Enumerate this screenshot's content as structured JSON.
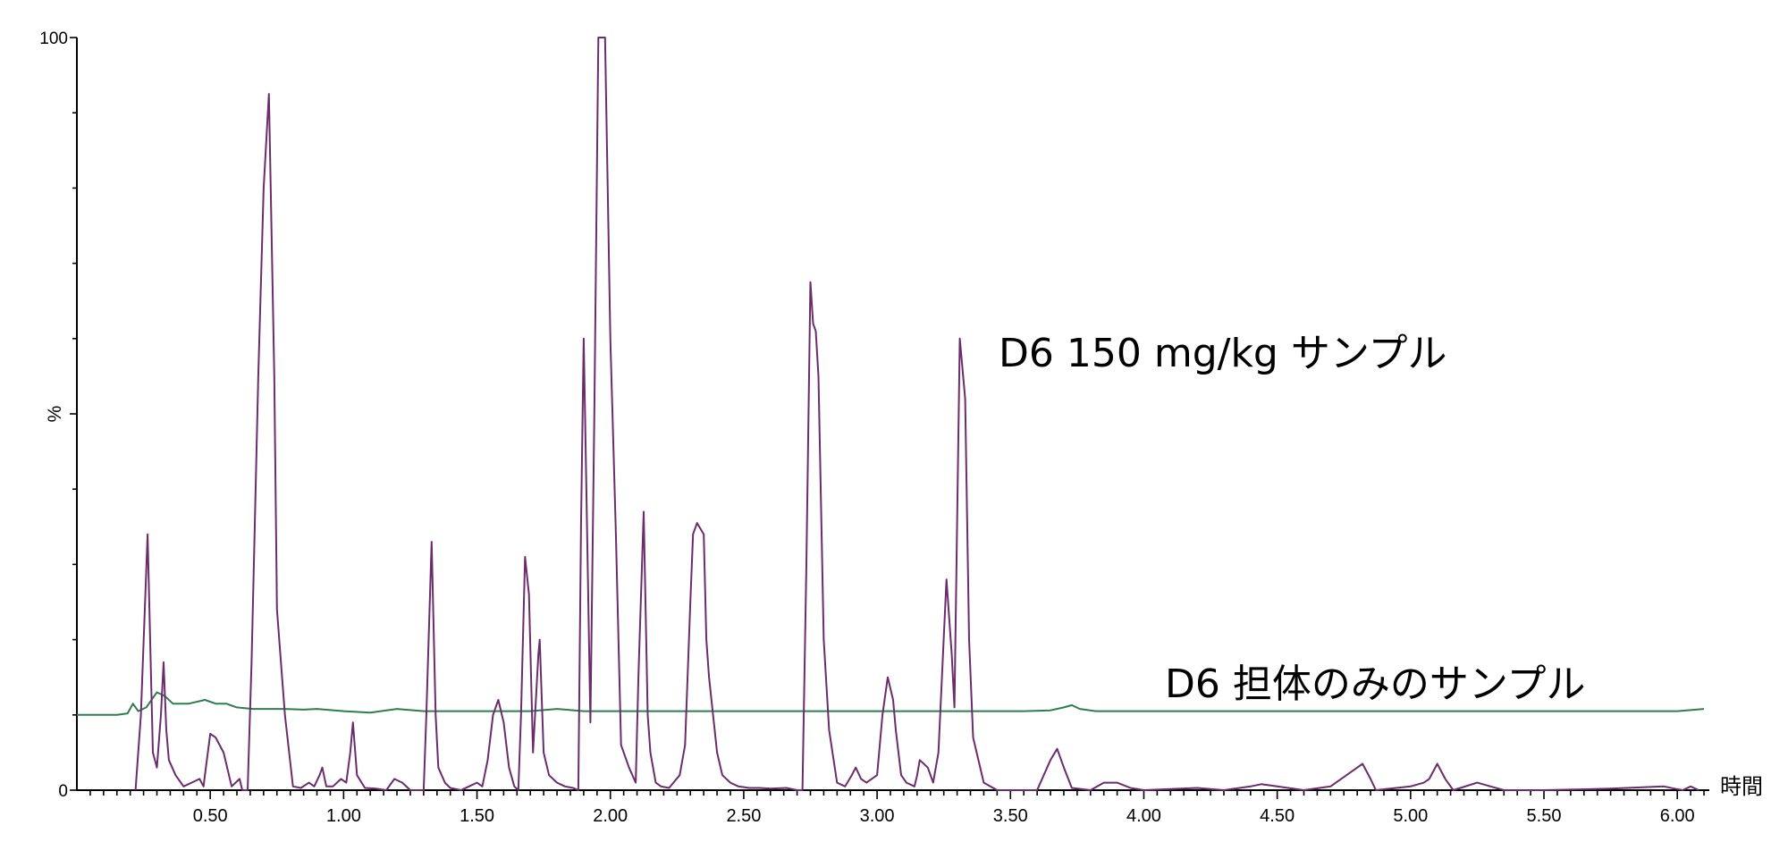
{
  "chart_data": {
    "type": "line",
    "xlabel": "時間",
    "ylabel": "%",
    "xlim": [
      0.0,
      6.12
    ],
    "ylim": [
      0,
      100
    ],
    "x_ticks": [
      "0.50",
      "1.00",
      "1.50",
      "2.00",
      "2.50",
      "3.00",
      "3.50",
      "4.00",
      "4.50",
      "5.00",
      "5.50",
      "6.00"
    ],
    "y_ticks": [
      "0",
      "100"
    ],
    "grid": false,
    "series": [
      {
        "name": "D6 150 mg/kg サンプル",
        "color": "#6b2c6b",
        "points": [
          [
            0.22,
            0
          ],
          [
            0.24,
            10
          ],
          [
            0.265,
            34
          ],
          [
            0.285,
            5
          ],
          [
            0.3,
            3
          ],
          [
            0.315,
            10
          ],
          [
            0.325,
            17
          ],
          [
            0.335,
            8
          ],
          [
            0.345,
            4
          ],
          [
            0.37,
            2
          ],
          [
            0.4,
            0.5
          ],
          [
            0.43,
            1
          ],
          [
            0.46,
            1.5
          ],
          [
            0.475,
            0.5
          ],
          [
            0.48,
            2
          ],
          [
            0.5,
            7.5
          ],
          [
            0.52,
            7
          ],
          [
            0.55,
            5
          ],
          [
            0.58,
            0.5
          ],
          [
            0.61,
            1.5
          ],
          [
            0.62,
            0
          ],
          [
            0.64,
            0
          ],
          [
            0.655,
            17
          ],
          [
            0.68,
            55
          ],
          [
            0.7,
            80
          ],
          [
            0.72,
            92.5
          ],
          [
            0.74,
            55
          ],
          [
            0.75,
            24
          ],
          [
            0.78,
            10
          ],
          [
            0.81,
            0.5
          ],
          [
            0.84,
            0.3
          ],
          [
            0.87,
            1
          ],
          [
            0.89,
            0.5
          ],
          [
            0.91,
            2
          ],
          [
            0.92,
            3
          ],
          [
            0.935,
            0.5
          ],
          [
            0.96,
            0.5
          ],
          [
            0.99,
            1.5
          ],
          [
            1.01,
            1
          ],
          [
            1.025,
            5
          ],
          [
            1.035,
            9
          ],
          [
            1.05,
            2
          ],
          [
            1.08,
            0.3
          ],
          [
            1.12,
            0.2
          ],
          [
            1.16,
            0
          ],
          [
            1.19,
            1.5
          ],
          [
            1.22,
            1
          ],
          [
            1.25,
            0
          ],
          [
            1.3,
            0
          ],
          [
            1.31,
            10
          ],
          [
            1.33,
            33
          ],
          [
            1.345,
            10
          ],
          [
            1.355,
            3
          ],
          [
            1.38,
            1
          ],
          [
            1.4,
            0.3
          ],
          [
            1.44,
            0
          ],
          [
            1.47,
            0.5
          ],
          [
            1.5,
            1
          ],
          [
            1.52,
            0.5
          ],
          [
            1.54,
            4
          ],
          [
            1.56,
            10
          ],
          [
            1.58,
            12
          ],
          [
            1.6,
            9
          ],
          [
            1.62,
            3
          ],
          [
            1.64,
            0.5
          ],
          [
            1.655,
            0
          ],
          [
            1.665,
            10
          ],
          [
            1.68,
            31
          ],
          [
            1.695,
            26
          ],
          [
            1.71,
            5
          ],
          [
            1.73,
            18
          ],
          [
            1.735,
            20
          ],
          [
            1.75,
            5
          ],
          [
            1.77,
            2
          ],
          [
            1.8,
            1
          ],
          [
            1.83,
            0.5
          ],
          [
            1.86,
            0.3
          ],
          [
            1.88,
            0
          ],
          [
            1.89,
            35
          ],
          [
            1.9,
            60
          ],
          [
            1.91,
            40
          ],
          [
            1.925,
            9
          ],
          [
            1.94,
            50
          ],
          [
            1.955,
            100
          ],
          [
            1.98,
            100
          ],
          [
            2.0,
            60
          ],
          [
            2.02,
            35
          ],
          [
            2.04,
            6
          ],
          [
            2.07,
            3
          ],
          [
            2.095,
            1
          ],
          [
            2.105,
            15
          ],
          [
            2.125,
            37
          ],
          [
            2.14,
            10
          ],
          [
            2.15,
            5
          ],
          [
            2.17,
            1
          ],
          [
            2.19,
            0.5
          ],
          [
            2.22,
            0.3
          ],
          [
            2.26,
            2
          ],
          [
            2.28,
            6
          ],
          [
            2.3,
            25
          ],
          [
            2.31,
            34
          ],
          [
            2.325,
            35.5
          ],
          [
            2.35,
            34
          ],
          [
            2.36,
            20
          ],
          [
            2.37,
            15
          ],
          [
            2.4,
            5
          ],
          [
            2.42,
            2
          ],
          [
            2.45,
            1
          ],
          [
            2.48,
            0.5
          ],
          [
            2.52,
            0.3
          ],
          [
            2.56,
            0.3
          ],
          [
            2.6,
            0.2
          ],
          [
            2.66,
            0.3
          ],
          [
            2.7,
            0
          ],
          [
            2.72,
            0
          ],
          [
            2.735,
            30
          ],
          [
            2.75,
            67.5
          ],
          [
            2.76,
            62
          ],
          [
            2.77,
            61
          ],
          [
            2.78,
            55
          ],
          [
            2.8,
            20
          ],
          [
            2.82,
            8
          ],
          [
            2.85,
            1
          ],
          [
            2.88,
            0.5
          ],
          [
            2.905,
            2
          ],
          [
            2.92,
            3
          ],
          [
            2.94,
            1.5
          ],
          [
            2.96,
            1
          ],
          [
            3.0,
            2
          ],
          [
            3.02,
            10
          ],
          [
            3.04,
            15
          ],
          [
            3.06,
            12
          ],
          [
            3.07,
            8
          ],
          [
            3.09,
            2
          ],
          [
            3.11,
            1
          ],
          [
            3.14,
            0.5
          ],
          [
            3.15,
            2
          ],
          [
            3.16,
            4
          ],
          [
            3.19,
            3
          ],
          [
            3.21,
            1
          ],
          [
            3.23,
            5
          ],
          [
            3.26,
            28
          ],
          [
            3.28,
            18
          ],
          [
            3.29,
            11
          ],
          [
            3.31,
            60
          ],
          [
            3.33,
            52
          ],
          [
            3.345,
            20
          ],
          [
            3.36,
            7
          ],
          [
            3.4,
            1
          ],
          [
            3.45,
            0
          ],
          [
            3.6,
            0
          ],
          [
            3.65,
            4
          ],
          [
            3.675,
            5.5
          ],
          [
            3.7,
            3
          ],
          [
            3.73,
            0.3
          ],
          [
            3.8,
            0
          ],
          [
            3.85,
            1
          ],
          [
            3.9,
            1
          ],
          [
            3.95,
            0.3
          ],
          [
            4.0,
            0
          ],
          [
            4.2,
            0.3
          ],
          [
            4.3,
            0
          ],
          [
            4.4,
            0.5
          ],
          [
            4.44,
            0.8
          ],
          [
            4.5,
            0.5
          ],
          [
            4.6,
            0
          ],
          [
            4.7,
            0.5
          ],
          [
            4.8,
            3
          ],
          [
            4.82,
            3.5
          ],
          [
            4.85,
            1.5
          ],
          [
            4.87,
            0
          ],
          [
            5.0,
            0.5
          ],
          [
            5.05,
            1
          ],
          [
            5.07,
            1.5
          ],
          [
            5.1,
            3.5
          ],
          [
            5.13,
            1.5
          ],
          [
            5.16,
            0
          ],
          [
            5.25,
            1
          ],
          [
            5.3,
            0.5
          ],
          [
            5.35,
            0
          ],
          [
            5.5,
            0
          ],
          [
            5.75,
            0.2
          ],
          [
            5.95,
            0.5
          ],
          [
            5.99,
            0.2
          ],
          [
            6.02,
            0
          ],
          [
            6.05,
            0.5
          ],
          [
            6.08,
            0
          ]
        ]
      },
      {
        "name": "D6 担体のみのサンプル",
        "color": "#2e7d4f",
        "points": [
          [
            0.0,
            10
          ],
          [
            0.15,
            10
          ],
          [
            0.19,
            10.2
          ],
          [
            0.21,
            11.5
          ],
          [
            0.23,
            10.5
          ],
          [
            0.26,
            11
          ],
          [
            0.3,
            13
          ],
          [
            0.33,
            12.5
          ],
          [
            0.36,
            11.5
          ],
          [
            0.42,
            11.5
          ],
          [
            0.48,
            12
          ],
          [
            0.52,
            11.5
          ],
          [
            0.56,
            11.5
          ],
          [
            0.6,
            11
          ],
          [
            0.66,
            10.8
          ],
          [
            0.72,
            10.8
          ],
          [
            0.78,
            10.8
          ],
          [
            0.85,
            10.7
          ],
          [
            0.9,
            10.8
          ],
          [
            1.0,
            10.5
          ],
          [
            1.1,
            10.3
          ],
          [
            1.2,
            10.8
          ],
          [
            1.3,
            10.5
          ],
          [
            1.4,
            10.5
          ],
          [
            1.5,
            10.5
          ],
          [
            1.6,
            10.5
          ],
          [
            1.7,
            10.5
          ],
          [
            1.8,
            10.8
          ],
          [
            1.9,
            10.5
          ],
          [
            2.0,
            10.5
          ],
          [
            2.2,
            10.5
          ],
          [
            2.4,
            10.5
          ],
          [
            2.6,
            10.5
          ],
          [
            2.8,
            10.5
          ],
          [
            3.0,
            10.5
          ],
          [
            3.2,
            10.5
          ],
          [
            3.4,
            10.5
          ],
          [
            3.55,
            10.5
          ],
          [
            3.65,
            10.6
          ],
          [
            3.7,
            11
          ],
          [
            3.73,
            11.3
          ],
          [
            3.76,
            10.8
          ],
          [
            3.82,
            10.5
          ],
          [
            4.0,
            10.5
          ],
          [
            4.5,
            10.5
          ],
          [
            5.0,
            10.5
          ],
          [
            5.5,
            10.5
          ],
          [
            5.8,
            10.5
          ],
          [
            6.0,
            10.5
          ],
          [
            6.1,
            10.8
          ]
        ]
      }
    ],
    "annotations": [
      {
        "text": "D6 150 mg/kg サンプル",
        "x": 3.45,
        "y": 55.5
      },
      {
        "text": "D6 担体のみのサンプル",
        "x": 4.07,
        "y": 12.5
      }
    ]
  }
}
